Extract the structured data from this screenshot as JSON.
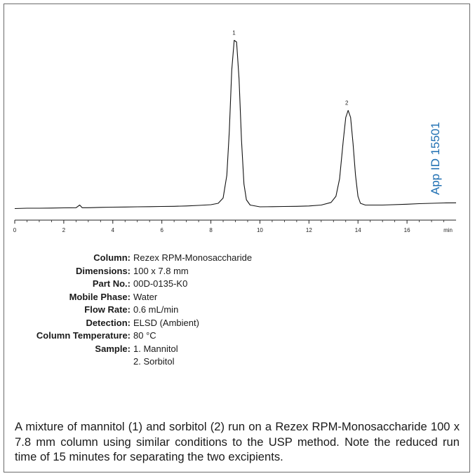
{
  "chart_data": {
    "type": "line",
    "xlabel": "min",
    "xlim": [
      0,
      18
    ],
    "xticks": [
      "0",
      "2",
      "4",
      "6",
      "8",
      "10",
      "12",
      "14",
      "16"
    ],
    "peaks": [
      {
        "label": "1",
        "x": 9.0,
        "relative_height": 0.97
      },
      {
        "label": "2",
        "x": 13.6,
        "relative_height": 0.57
      }
    ],
    "trace": [
      [
        0.0,
        0.01
      ],
      [
        0.5,
        0.012
      ],
      [
        1.0,
        0.012
      ],
      [
        1.5,
        0.013
      ],
      [
        2.0,
        0.014
      ],
      [
        2.5,
        0.015
      ],
      [
        2.65,
        0.03
      ],
      [
        2.75,
        0.015
      ],
      [
        3.0,
        0.015
      ],
      [
        3.5,
        0.017
      ],
      [
        4.0,
        0.018
      ],
      [
        4.5,
        0.019
      ],
      [
        5.0,
        0.02
      ],
      [
        5.5,
        0.021
      ],
      [
        6.0,
        0.022
      ],
      [
        6.5,
        0.023
      ],
      [
        7.0,
        0.025
      ],
      [
        7.5,
        0.028
      ],
      [
        8.0,
        0.032
      ],
      [
        8.3,
        0.04
      ],
      [
        8.5,
        0.07
      ],
      [
        8.65,
        0.2
      ],
      [
        8.75,
        0.45
      ],
      [
        8.85,
        0.8
      ],
      [
        8.95,
        0.97
      ],
      [
        9.05,
        0.96
      ],
      [
        9.15,
        0.75
      ],
      [
        9.25,
        0.4
      ],
      [
        9.35,
        0.15
      ],
      [
        9.45,
        0.06
      ],
      [
        9.6,
        0.03
      ],
      [
        10.0,
        0.02
      ],
      [
        10.5,
        0.021
      ],
      [
        11.0,
        0.022
      ],
      [
        11.5,
        0.023
      ],
      [
        12.0,
        0.025
      ],
      [
        12.5,
        0.03
      ],
      [
        12.9,
        0.045
      ],
      [
        13.1,
        0.08
      ],
      [
        13.25,
        0.18
      ],
      [
        13.4,
        0.4
      ],
      [
        13.5,
        0.53
      ],
      [
        13.6,
        0.57
      ],
      [
        13.7,
        0.53
      ],
      [
        13.8,
        0.38
      ],
      [
        13.9,
        0.2
      ],
      [
        14.0,
        0.08
      ],
      [
        14.1,
        0.04
      ],
      [
        14.3,
        0.03
      ],
      [
        15.0,
        0.03
      ],
      [
        16.0,
        0.035
      ],
      [
        16.5,
        0.038
      ],
      [
        17.0,
        0.04
      ],
      [
        17.5,
        0.042
      ],
      [
        18.0,
        0.043
      ]
    ]
  },
  "app_id": "App ID 15501",
  "conditions": [
    {
      "label": "Column:",
      "values": [
        "Rezex RPM-Monosaccharide"
      ]
    },
    {
      "label": "Dimensions:",
      "values": [
        "100 x 7.8 mm"
      ]
    },
    {
      "label": "Part No.:",
      "values": [
        "00D-0135-K0"
      ]
    },
    {
      "label": "Mobile Phase:",
      "values": [
        "Water"
      ]
    },
    {
      "label": "Flow Rate:",
      "values": [
        "0.6 mL/min"
      ]
    },
    {
      "label": "Detection:",
      "values": [
        "ELSD (Ambient)"
      ]
    },
    {
      "label": "Column Temperature:",
      "values": [
        "80 °C"
      ]
    },
    {
      "label": "Sample:",
      "values": [
        "1. Mannitol",
        "2. Sorbitol"
      ]
    }
  ],
  "caption": "A mixture of mannitol (1) and sorbitol (2) run on a Rezex RPM-Monosaccharide 100 x 7.8 mm column using similar conditions to the USP method. Note the reduced run time of 15 minutes for separating the two excipients.",
  "colors": {
    "trace": "#111111",
    "app_id": "#1f6fb2",
    "frame": "#6b6b6b"
  }
}
